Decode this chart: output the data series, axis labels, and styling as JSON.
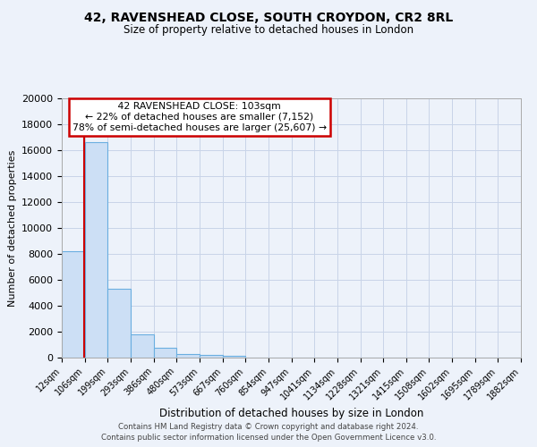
{
  "title": "42, RAVENSHEAD CLOSE, SOUTH CROYDON, CR2 8RL",
  "subtitle": "Size of property relative to detached houses in London",
  "xlabel": "Distribution of detached houses by size in London",
  "ylabel": "Number of detached properties",
  "bin_edges": [
    12,
    106,
    199,
    293,
    386,
    480,
    573,
    667,
    760,
    854,
    947,
    1041,
    1134,
    1228,
    1321,
    1415,
    1508,
    1602,
    1695,
    1789,
    1882
  ],
  "bin_labels": [
    "12sqm",
    "106sqm",
    "199sqm",
    "293sqm",
    "386sqm",
    "480sqm",
    "573sqm",
    "667sqm",
    "760sqm",
    "854sqm",
    "947sqm",
    "1041sqm",
    "1134sqm",
    "1228sqm",
    "1321sqm",
    "1415sqm",
    "1508sqm",
    "1602sqm",
    "1695sqm",
    "1789sqm",
    "1882sqm"
  ],
  "bar_heights": [
    8200,
    16600,
    5300,
    1800,
    750,
    300,
    200,
    150,
    0,
    0,
    0,
    0,
    0,
    0,
    0,
    0,
    0,
    0,
    0,
    0
  ],
  "bar_color": "#ccdff5",
  "bar_edge_color": "#6aaee0",
  "property_line_x": 103,
  "annotation_title": "42 RAVENSHEAD CLOSE: 103sqm",
  "annotation_line1": "← 22% of detached houses are smaller (7,152)",
  "annotation_line2": "78% of semi-detached houses are larger (25,607) →",
  "annotation_box_color": "#ffffff",
  "annotation_box_edge": "#cc0000",
  "vertical_line_color": "#cc0000",
  "grid_color": "#c8d4e8",
  "ylim": [
    0,
    20000
  ],
  "yticks": [
    0,
    2000,
    4000,
    6000,
    8000,
    10000,
    12000,
    14000,
    16000,
    18000,
    20000
  ],
  "footnote1": "Contains HM Land Registry data © Crown copyright and database right 2024.",
  "footnote2": "Contains public sector information licensed under the Open Government Licence v3.0.",
  "bg_color": "#edf2fa",
  "plot_bg_color": "#edf2fa"
}
